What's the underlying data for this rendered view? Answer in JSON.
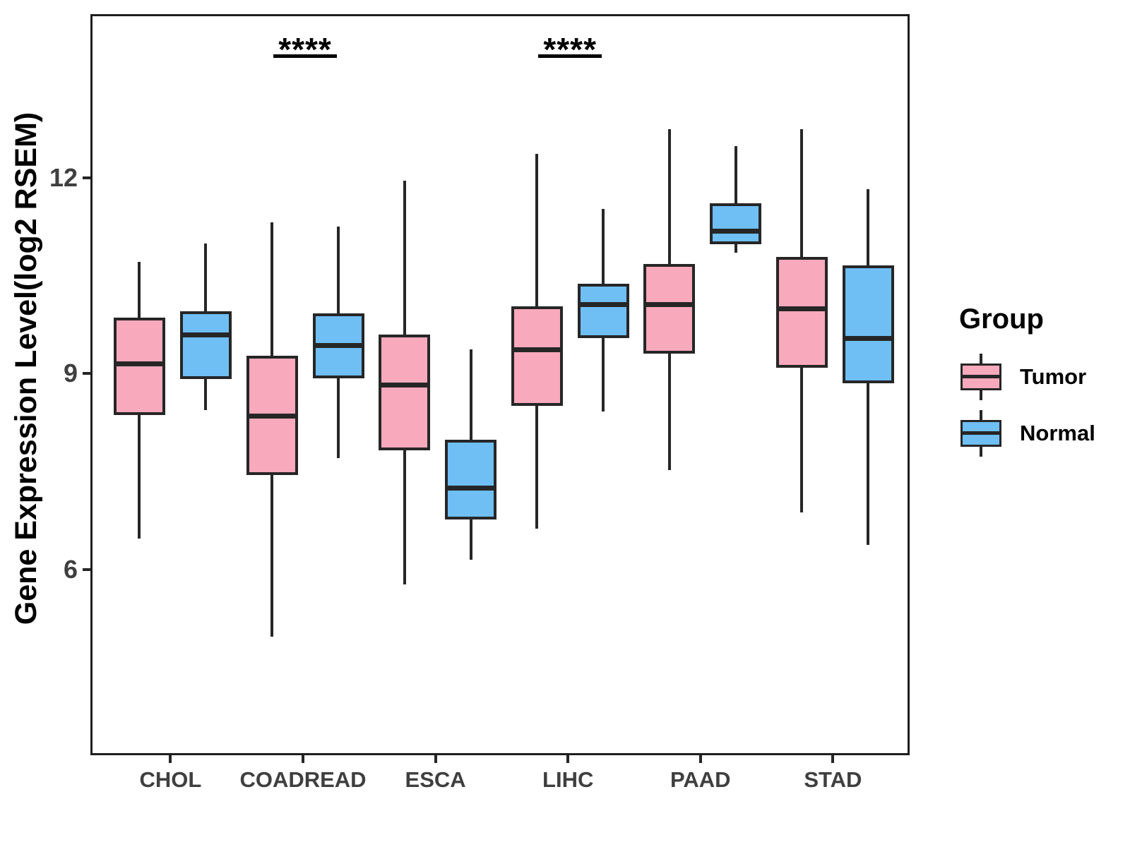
{
  "chart_data": {
    "type": "boxplot",
    "title": "",
    "xlabel": "",
    "ylabel": "Gene Expression Level(log2 RSEM)",
    "yticks": [
      6,
      9,
      12
    ],
    "ylim": [
      3.1,
      14.5
    ],
    "grid": false,
    "legend_position": "right",
    "categories": [
      "CHOL",
      "COADREAD",
      "ESCA",
      "LIHC",
      "PAAD",
      "STAD"
    ],
    "series": [
      {
        "name": "Tumor",
        "color": "#F8A9BC",
        "boxes": [
          {
            "low": 6.5,
            "q1": 8.39,
            "median": 9.18,
            "q3": 9.89,
            "high": 10.74
          },
          {
            "low": 5.0,
            "q1": 7.48,
            "median": 8.38,
            "q3": 9.3,
            "high": 11.35
          },
          {
            "low": 5.8,
            "q1": 7.85,
            "median": 8.85,
            "q3": 9.63,
            "high": 11.98
          },
          {
            "low": 6.65,
            "q1": 8.53,
            "median": 9.39,
            "q3": 10.06,
            "high": 12.4
          },
          {
            "low": 7.55,
            "q1": 9.34,
            "median": 10.09,
            "q3": 10.71,
            "high": 12.77
          },
          {
            "low": 6.9,
            "q1": 9.12,
            "median": 10.02,
            "q3": 10.82,
            "high": 12.77
          }
        ]
      },
      {
        "name": "Normal",
        "color": "#6FBEF4",
        "boxes": [
          {
            "low": 8.47,
            "q1": 8.95,
            "median": 9.62,
            "q3": 9.98,
            "high": 11.02
          },
          {
            "low": 7.73,
            "q1": 8.96,
            "median": 9.46,
            "q3": 9.95,
            "high": 11.28
          },
          {
            "low": 6.18,
            "q1": 6.79,
            "median": 7.28,
            "q3": 8.02,
            "high": 9.4
          },
          {
            "low": 8.45,
            "q1": 9.57,
            "median": 10.09,
            "q3": 10.41,
            "high": 11.55
          },
          {
            "low": 10.88,
            "q1": 11.01,
            "median": 11.21,
            "q3": 11.64,
            "high": 12.51
          },
          {
            "low": 6.4,
            "q1": 8.88,
            "median": 9.57,
            "q3": 10.69,
            "high": 11.85
          }
        ]
      }
    ],
    "annotations": [
      {
        "label": "****",
        "category": "COADREAD"
      },
      {
        "label": "****",
        "category": "LIHC"
      }
    ]
  },
  "legend": {
    "title": "Group",
    "items": [
      {
        "label": "Tumor"
      },
      {
        "label": "Normal"
      }
    ]
  }
}
